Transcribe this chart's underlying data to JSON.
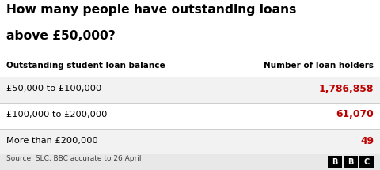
{
  "title_line1": "How many people have outstanding loans",
  "title_line2": "above £50,000?",
  "col1_header": "Outstanding student loan balance",
  "col2_header": "Number of loan holders",
  "rows": [
    {
      "label": "£50,000 to £100,000",
      "value": "1,786,858",
      "bg": "#f2f2f2"
    },
    {
      "label": "£100,000 to £200,000",
      "value": "61,070",
      "bg": "#ffffff"
    },
    {
      "label": "More than £200,000",
      "value": "49",
      "bg": "#f2f2f2"
    }
  ],
  "source_text": "Source: SLC, BBC accurate to 26 April",
  "bg_color": "#ffffff",
  "header_color": "#000000",
  "value_color": "#bb0000",
  "label_color": "#000000",
  "title_color": "#000000",
  "source_color": "#404040",
  "footer_bg": "#e8e8e8",
  "bbc_box_color": "#000000",
  "bbc_text_color": "#ffffff",
  "sep_color": "#cccccc"
}
